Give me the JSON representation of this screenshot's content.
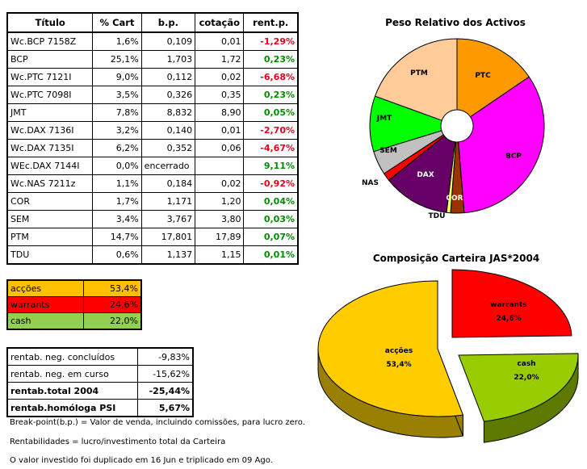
{
  "holdings_table": {
    "headers": [
      "Título",
      "% Cart",
      "b.p.",
      "cotação",
      "rent.p."
    ],
    "rows": [
      {
        "titulo": "Wc.BCP 7158Z",
        "cart": "1,6%",
        "bp": "0,109",
        "cotacao": "0,01",
        "rent": "-1,29%",
        "sign": "neg"
      },
      {
        "titulo": "BCP",
        "cart": "25,1%",
        "bp": "1,703",
        "cotacao": "1,72",
        "rent": "0,23%",
        "sign": "pos"
      },
      {
        "titulo": "Wc.PTC 7121I",
        "cart": "9,0%",
        "bp": "0,112",
        "cotacao": "0,02",
        "rent": "-6,68%",
        "sign": "neg"
      },
      {
        "titulo": "Wc.PTC 7098I",
        "cart": "3,5%",
        "bp": "0,326",
        "cotacao": "0,35",
        "rent": "0,23%",
        "sign": "pos"
      },
      {
        "titulo": "JMT",
        "cart": "7,8%",
        "bp": "8,832",
        "cotacao": "8,90",
        "rent": "0,05%",
        "sign": "pos"
      },
      {
        "titulo": "Wc.DAX 7136I",
        "cart": "3,2%",
        "bp": "0,140",
        "cotacao": "0,01",
        "rent": "-2,70%",
        "sign": "neg"
      },
      {
        "titulo": "Wc.DAX 7135I",
        "cart": "6,2%",
        "bp": "0,352",
        "cotacao": "0,06",
        "rent": "-4,67%",
        "sign": "neg"
      },
      {
        "titulo": "WEc.DAX 7144I",
        "cart": "0,0%",
        "bp": "encerrado",
        "cotacao": "",
        "rent": "9,11%",
        "sign": "pos"
      },
      {
        "titulo": "Wc.NAS 7211z",
        "cart": "1,1%",
        "bp": "0,184",
        "cotacao": "0,02",
        "rent": "-0,92%",
        "sign": "neg"
      },
      {
        "titulo": "COR",
        "cart": "1,7%",
        "bp": "1,171",
        "cotacao": "1,20",
        "rent": "0,04%",
        "sign": "pos"
      },
      {
        "titulo": "SEM",
        "cart": "3,4%",
        "bp": "3,767",
        "cotacao": "3,80",
        "rent": "0,03%",
        "sign": "pos"
      },
      {
        "titulo": "PTM",
        "cart": "14,7%",
        "bp": "17,801",
        "cotacao": "17,89",
        "rent": "0,07%",
        "sign": "pos"
      },
      {
        "titulo": "TDU",
        "cart": "0,6%",
        "bp": "1,137",
        "cotacao": "1,15",
        "rent": "0,01%",
        "sign": "pos"
      }
    ]
  },
  "allocation_table": {
    "rows": [
      {
        "label": "acções",
        "value": "53,4%",
        "color": "#ffc000"
      },
      {
        "label": "warrants",
        "value": "24,6%",
        "color": "#ff0000"
      },
      {
        "label": "cash",
        "value": "22,0%",
        "color": "#92d050"
      }
    ]
  },
  "stats_table": {
    "rows": [
      {
        "label": "rentab. neg. concluídos",
        "value": "-9,83%",
        "bold": false
      },
      {
        "label": "rentab. neg. em curso",
        "value": "-15,62%",
        "bold": false
      },
      {
        "label": "rentab.total 2004",
        "value": "-25,44%",
        "bold": true
      },
      {
        "label": "rentab.homóloga PSI",
        "value": "5,67%",
        "bold": true
      }
    ]
  },
  "notes": {
    "breakpoint": "Break-point(b.p.) = Valor de venda, incluindo comissões, para lucro zero.",
    "rentabilidades": "Rentabilidades = lucro/investimento total da Carteira",
    "valor": "O valor investido foi duplicado em 16 Jun e triplicado em 09 Ago."
  },
  "chart_data": [
    {
      "type": "pie",
      "variant": "doughnut",
      "title": "Peso Relativo dos Activos",
      "categories": [
        "PTC",
        "BCP",
        "COR",
        "TDU",
        "DAX",
        "NAS",
        "SEM",
        "JMT",
        "PTM"
      ],
      "values": [
        12.5,
        26.8,
        2.0,
        0.6,
        10.0,
        1.2,
        3.6,
        8.3,
        15.7
      ],
      "colors": [
        "#ff9900",
        "#ff00ff",
        "#993300",
        "#ffff66",
        "#660066",
        "#ff0000",
        "#c0c0c0",
        "#00ff00",
        "#ffcc99"
      ]
    },
    {
      "type": "pie",
      "variant": "3d-exploded",
      "title": "Composição Carteira JAS*2004",
      "categories": [
        "acções",
        "warrants",
        "cash"
      ],
      "values": [
        53.4,
        24.6,
        22.0
      ],
      "labels": [
        "53,4%",
        "24,6%",
        "22,0%"
      ],
      "colors": [
        "#ffcc00",
        "#ff0000",
        "#99cc00"
      ],
      "side_colors": [
        "#998000",
        "#990000",
        "#5c7a00"
      ]
    }
  ]
}
